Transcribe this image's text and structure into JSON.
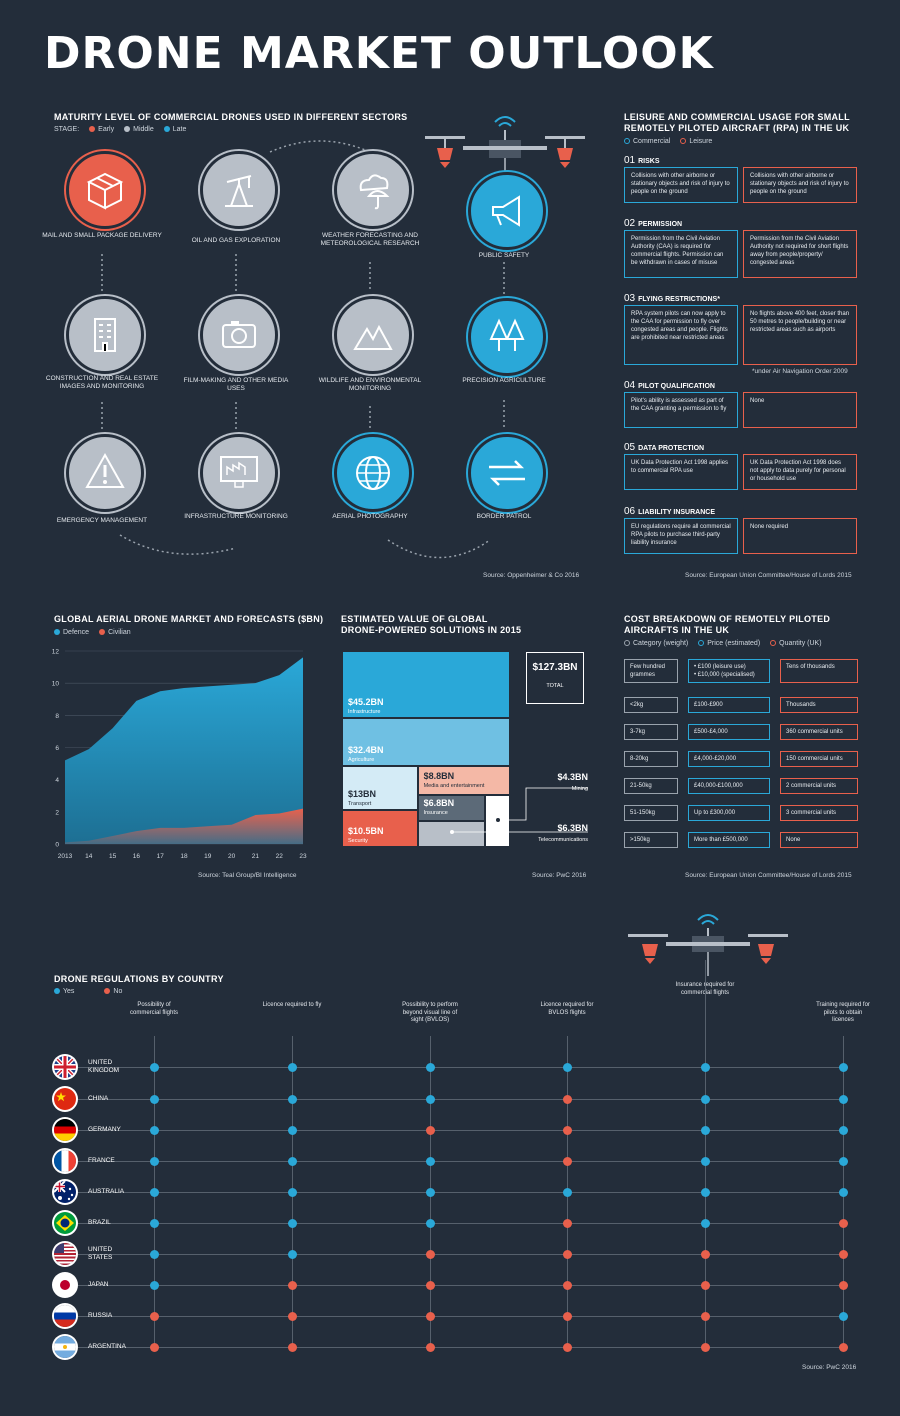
{
  "title": "DRONE MARKET OUTLOOK",
  "maturity": {
    "title": "MATURITY LEVEL OF COMMERCIAL DRONES USED IN DIFFERENT SECTORS",
    "stage_label": "STAGE:",
    "stages": [
      "Early",
      "Middle",
      "Late"
    ],
    "stage_colors": [
      "#e8604c",
      "#b8bfc8",
      "#2aa8d8"
    ],
    "sectors": [
      {
        "label": "MAIL AND SMALL PACKAGE DELIVERY",
        "stage": "Early",
        "icon": "package-icon"
      },
      {
        "label": "OIL AND GAS EXPLORATION",
        "stage": "Middle",
        "icon": "oil-pump-icon"
      },
      {
        "label": "WEATHER FORECASTING AND METEOROLOGICAL RESEARCH",
        "stage": "Middle",
        "icon": "weather-icon"
      },
      {
        "label": "PUBLIC SAFETY",
        "stage": "Late",
        "icon": "megaphone-icon"
      },
      {
        "label": "CONSTRUCTION AND REAL ESTATE IMAGES AND MONITORING",
        "stage": "Middle",
        "icon": "building-icon"
      },
      {
        "label": "FILM-MAKING AND OTHER MEDIA USES",
        "stage": "Middle",
        "icon": "camera-icon"
      },
      {
        "label": "WILDLIFE AND ENVIRONMENTAL MONITORING",
        "stage": "Middle",
        "icon": "mountain-icon"
      },
      {
        "label": "PRECISION AGRICULTURE",
        "stage": "Late",
        "icon": "trees-icon"
      },
      {
        "label": "EMERGENCY MANAGEMENT",
        "stage": "Middle",
        "icon": "warning-icon"
      },
      {
        "label": "INFRASTRUCTURE MONITORING",
        "stage": "Middle",
        "icon": "monitor-icon"
      },
      {
        "label": "AERIAL PHOTOGRAPHY",
        "stage": "Late",
        "icon": "globe-icon"
      },
      {
        "label": "BORDER PATROL",
        "stage": "Late",
        "icon": "arrows-icon"
      }
    ],
    "source": "Source: Oppenheimer & Co 2016"
  },
  "rpa": {
    "title_line1": "LEISURE AND COMMERCIAL USAGE FOR SMALL",
    "title_line2": "REMOTELY PILOTED AIRCRAFT (RPA) IN THE UK",
    "legend_commercial": "Commercial",
    "legend_leisure": "Leisure",
    "rows": [
      {
        "num": "01",
        "title": "RISKS",
        "commercial": "Collisions with other airborne or stationary objects and risk of injury to people on the ground",
        "leisure": "Collisions with other airborne or stationary objects and risk of injury to people on the ground"
      },
      {
        "num": "02",
        "title": "PERMISSION",
        "commercial": "Permission from the Civil Aviation Authority (CAA) is required for commercial flights. Permission can be withdrawn in cases of misuse",
        "leisure": "Permission from the Civil Aviation Authority not required for short flights away from people/property/ congested areas"
      },
      {
        "num": "03",
        "title": "FLYING RESTRICTIONS*",
        "commercial": "RPA system pilots can now apply to the CAA for permission to fly over congested areas and people. Flights are prohibited near restricted areas",
        "leisure": "No flights above 400 feet, closer than 50 metres to people/building or near restricted areas such as airports"
      },
      {
        "num": "04",
        "title": "PILOT QUALIFICATION",
        "commercial": "Pilot's ability is assessed as part of the CAA granting a permission to fly",
        "leisure": "None"
      },
      {
        "num": "05",
        "title": "DATA PROTECTION",
        "commercial": "UK Data Protection Act 1998 applies to commercial RPA use",
        "leisure": "UK Data Protection Act 1998 does not apply to data purely for personal or household use"
      },
      {
        "num": "06",
        "title": "LIABILITY INSURANCE",
        "commercial": "EU regulations require all commercial RPA pilots to purchase third-party liability insurance",
        "leisure": "None required"
      }
    ],
    "footnote": "*under Air Navigation Order 2009",
    "source": "Source: European Union Committee/House of Lords 2015"
  },
  "market": {
    "title": "GLOBAL AERIAL DRONE MARKET AND FORECASTS ($BN)",
    "source": "Source: Teal Group/BI Intelligence"
  },
  "chart_data": [
    {
      "type": "area",
      "title": "GLOBAL AERIAL DRONE MARKET AND FORECASTS ($BN)",
      "x": [
        "2013",
        "14",
        "15",
        "16",
        "17",
        "18",
        "19",
        "20",
        "21",
        "22",
        "23"
      ],
      "series": [
        {
          "name": "Defence",
          "color": "#2aa8d8",
          "values": [
            5.2,
            5.9,
            7.2,
            8.9,
            9.5,
            9.7,
            9.8,
            9.9,
            10.0,
            10.5,
            11.6
          ]
        },
        {
          "name": "Civilian",
          "color": "#e8604c",
          "values": [
            0.1,
            0.2,
            0.5,
            0.8,
            1.0,
            1.0,
            1.1,
            1.2,
            1.8,
            1.9,
            2.2
          ]
        }
      ],
      "yticks": [
        0,
        2,
        4,
        6,
        8,
        10,
        12
      ],
      "ylim": [
        0,
        12
      ],
      "grid": true,
      "legend": "top-left"
    },
    {
      "type": "treemap",
      "title": "ESTIMATED VALUE OF GLOBAL DRONE-POWERED SOLUTIONS IN 2015",
      "total": {
        "value": "$127.3BN",
        "label": "TOTAL"
      },
      "segments": [
        {
          "label": "Infrastructure",
          "value": 45.2,
          "text": "$45.2BN",
          "color": "#2aa8d8"
        },
        {
          "label": "Agriculture",
          "value": 32.4,
          "text": "$32.4BN",
          "color": "#6fc0e3"
        },
        {
          "label": "Transport",
          "value": 13,
          "text": "$13BN",
          "color": "#d4ebf6"
        },
        {
          "label": "Security",
          "value": 10.5,
          "text": "$10.5BN",
          "color": "#e8604c"
        },
        {
          "label": "Media and entertainment",
          "value": 8.8,
          "text": "$8.8BN",
          "color": "#f4b8a6"
        },
        {
          "label": "Insurance",
          "value": 6.8,
          "text": "$6.8BN",
          "color": "#5c6a78"
        },
        {
          "label": "Telecommunications",
          "value": 6.3,
          "text": "$6.3BN",
          "color": "#b8bfc8"
        },
        {
          "label": "Mining",
          "value": 4.3,
          "text": "$4.3BN",
          "color": "#ffffff"
        }
      ]
    }
  ],
  "solutions": {
    "title_line1": "ESTIMATED VALUE OF GLOBAL",
    "title_line2": "DRONE-POWERED SOLUTIONS IN 2015",
    "source": "Source: PwC 2016"
  },
  "cost": {
    "title_line1": "COST BREAKDOWN OF REMOTELY PILOTED",
    "title_line2": "AIRCRAFTS IN THE UK",
    "legend": [
      "Category (weight)",
      "Price (estimated)",
      "Quantity (UK)"
    ],
    "rows": [
      {
        "category": "Few hundred grammes",
        "price1": "• £100 (leisure use)",
        "price2": "• £10,000 (specialised)",
        "quantity": "Tens of thousands"
      },
      {
        "category": "<2kg",
        "price1": "£100-£900",
        "price2": "",
        "quantity": "Thousands"
      },
      {
        "category": "3-7kg",
        "price1": "£500-£4,000",
        "price2": "",
        "quantity": "360 commercial units"
      },
      {
        "category": "8-20kg",
        "price1": "£4,000-£20,000",
        "price2": "",
        "quantity": "150 commercial units"
      },
      {
        "category": "21-50kg",
        "price1": "£40,000-£100,000",
        "price2": "",
        "quantity": "2 commercial units"
      },
      {
        "category": "51-150kg",
        "price1": "Up to £300,000",
        "price2": "",
        "quantity": "3 commercial units"
      },
      {
        "category": ">150kg",
        "price1": "More than £500,000",
        "price2": "",
        "quantity": "None"
      }
    ],
    "source": "Source: European Union Committee/House of Lords 2015"
  },
  "regulations": {
    "title": "DRONE REGULATIONS BY COUNTRY",
    "legend_yes": "Yes",
    "legend_no": "No",
    "columns": [
      "Possibility of commercial flights",
      "Licence required to fly",
      "Possibility to perform beyond visual line of sight (BVLOS)",
      "Licence required for BVLOS flights",
      "Insurance required for commercial flights",
      "Training required for pilots to obtain licences"
    ],
    "countries": [
      {
        "name1": "UNITED",
        "name2": "KINGDOM",
        "flag": "uk-flag-icon",
        "values": [
          1,
          1,
          1,
          1,
          1,
          1
        ]
      },
      {
        "name1": "CHINA",
        "name2": "",
        "flag": "china-flag-icon",
        "values": [
          1,
          1,
          1,
          0,
          1,
          1
        ]
      },
      {
        "name1": "GERMANY",
        "name2": "",
        "flag": "germany-flag-icon",
        "values": [
          1,
          1,
          0,
          0,
          1,
          1
        ]
      },
      {
        "name1": "FRANCE",
        "name2": "",
        "flag": "france-flag-icon",
        "values": [
          1,
          1,
          1,
          0,
          1,
          1
        ]
      },
      {
        "name1": "AUSTRALIA",
        "name2": "",
        "flag": "australia-flag-icon",
        "values": [
          1,
          1,
          1,
          1,
          1,
          1
        ]
      },
      {
        "name1": "BRAZIL",
        "name2": "",
        "flag": "brazil-flag-icon",
        "values": [
          1,
          1,
          1,
          0,
          1,
          0
        ]
      },
      {
        "name1": "UNITED",
        "name2": "STATES",
        "flag": "usa-flag-icon",
        "values": [
          1,
          1,
          0,
          0,
          0,
          0
        ]
      },
      {
        "name1": "JAPAN",
        "name2": "",
        "flag": "japan-flag-icon",
        "values": [
          1,
          0,
          0,
          0,
          0,
          0
        ]
      },
      {
        "name1": "RUSSIA",
        "name2": "",
        "flag": "russia-flag-icon",
        "values": [
          0,
          0,
          0,
          0,
          0,
          1
        ]
      },
      {
        "name1": "ARGENTINA",
        "name2": "",
        "flag": "argentina-flag-icon",
        "values": [
          0,
          0,
          0,
          0,
          0,
          0
        ]
      }
    ],
    "source": "Source: PwC 2016"
  }
}
